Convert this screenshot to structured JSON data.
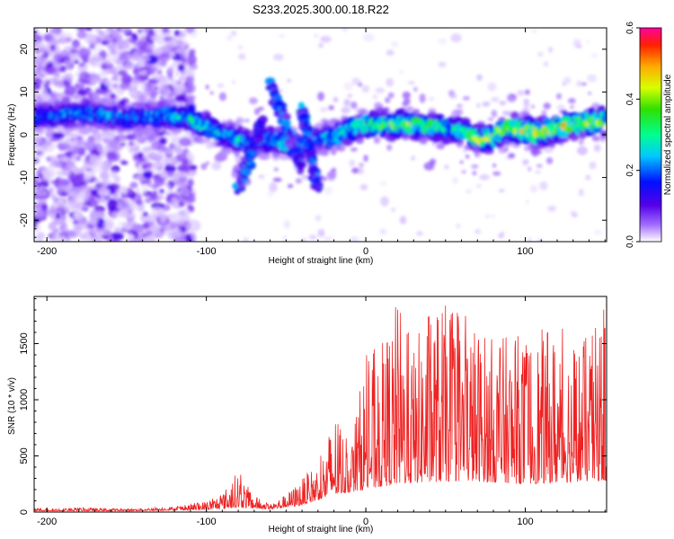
{
  "title": "S233.2025.300.00.18.R22",
  "chart_data": [
    {
      "type": "heatmap",
      "name": "spectrogram",
      "xlabel": "Height of straight line (km)",
      "ylabel": "Frequency (Hz)",
      "xlim": [
        -208,
        151
      ],
      "ylim": [
        -25,
        25
      ],
      "xticks": [
        -200,
        -100,
        0,
        100
      ],
      "yticks": [
        -20,
        -10,
        0,
        10,
        20
      ],
      "colorbar": {
        "label": "Normalized spectral amplitude",
        "range": [
          0.0,
          0.6
        ],
        "ticks": [
          0.0,
          0.2,
          0.4,
          0.6
        ],
        "tick_labels": [
          "0.0",
          "0.2",
          "0.4",
          "0.6"
        ]
      },
      "ridge": {
        "description": "main signal line (center frequency vs height)",
        "x": [
          -200,
          -175,
          -150,
          -125,
          -110,
          -100,
          -90,
          -80,
          -70,
          -60,
          -50,
          -40,
          -30,
          -20,
          -10,
          0,
          20,
          40,
          60,
          75,
          90,
          110,
          130,
          150
        ],
        "freq_hz": [
          4.5,
          5.0,
          4.0,
          4.5,
          4.0,
          2.0,
          0.0,
          -1.0,
          -2.0,
          -1.0,
          -2.0,
          -3.0,
          -1.0,
          -0.5,
          1.0,
          2.5,
          2.5,
          2.0,
          1.0,
          -1.5,
          1.5,
          0.5,
          2.5,
          3.0
        ],
        "peak_amplitude": [
          0.2,
          0.25,
          0.22,
          0.25,
          0.3,
          0.3,
          0.25,
          0.3,
          0.2,
          0.25,
          0.3,
          0.25,
          0.2,
          0.3,
          0.3,
          0.35,
          0.4,
          0.35,
          0.3,
          0.45,
          0.4,
          0.5,
          0.45,
          0.4
        ]
      },
      "diagonal_features": [
        {
          "x": [
            -80,
            -65
          ],
          "freq_hz": [
            -13,
            3
          ]
        },
        {
          "x": [
            -60,
            -40
          ],
          "freq_hz": [
            12,
            -8
          ]
        },
        {
          "x": [
            -40,
            -30
          ],
          "freq_hz": [
            6,
            -13
          ]
        }
      ]
    },
    {
      "type": "line",
      "name": "snr",
      "color": "#ee2222",
      "xlabel": "Height of straight line (km)",
      "ylabel": "SNR (10 * v/v)",
      "xlim": [
        -208,
        151
      ],
      "ylim": [
        0,
        1920
      ],
      "xticks": [
        -200,
        -100,
        0,
        100
      ],
      "yticks": [
        0,
        500,
        1000,
        1500
      ],
      "envelope": {
        "x": [
          -208,
          -180,
          -150,
          -120,
          -100,
          -90,
          -80,
          -75,
          -70,
          -60,
          -50,
          -40,
          -30,
          -25,
          -20,
          -10,
          -5,
          0,
          10,
          20,
          30,
          40,
          60,
          80,
          100,
          120,
          140,
          151
        ],
        "snr": [
          30,
          40,
          30,
          50,
          100,
          170,
          380,
          250,
          150,
          70,
          160,
          300,
          450,
          600,
          940,
          570,
          1000,
          1400,
          1500,
          1920,
          1480,
          1900,
          1800,
          1560,
          1600,
          1650,
          1560,
          1850
        ]
      },
      "baseline": {
        "x": [
          -208,
          -150,
          -100,
          -80,
          -60,
          -40,
          -20,
          0,
          20,
          60,
          100,
          150
        ],
        "snr": [
          10,
          10,
          20,
          40,
          25,
          60,
          150,
          200,
          250,
          280,
          250,
          280
        ]
      }
    }
  ]
}
